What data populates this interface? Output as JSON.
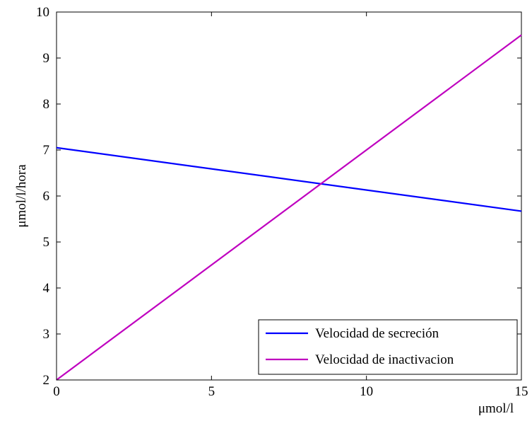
{
  "chart_data": {
    "type": "line",
    "title": "",
    "xlabel": "μmol/l",
    "ylabel": "μmol/l/hora",
    "xlim": [
      0,
      15
    ],
    "ylim": [
      2,
      10
    ],
    "xticks": [
      0,
      5,
      10,
      15
    ],
    "yticks": [
      2,
      3,
      4,
      5,
      6,
      7,
      8,
      9,
      10
    ],
    "grid": false,
    "legend_position": "bottom-right",
    "series": [
      {
        "name": "Velocidad de secreción",
        "color": "#0000ff",
        "x": [
          0,
          15
        ],
        "y": [
          7.05,
          5.67
        ]
      },
      {
        "name": "Velocidad de inactivacion",
        "color": "#bf00bf",
        "x": [
          0,
          15
        ],
        "y": [
          2.0,
          9.5
        ]
      }
    ]
  }
}
